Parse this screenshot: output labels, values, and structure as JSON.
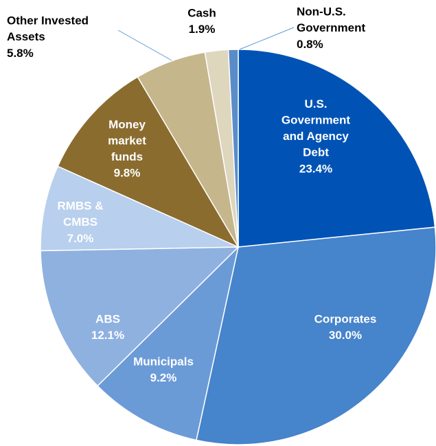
{
  "chart_data": {
    "type": "pie",
    "categories": [
      "U.S.\nGovernment\nand Agency\nDebt",
      "Corporates",
      "Municipals",
      "ABS",
      "RMBS &\nCMBS",
      "Money\nmarket\nfunds",
      "Other Invested\nAssets",
      "Cash",
      "Non-U.S.\nGovernment"
    ],
    "values": [
      23.4,
      30.0,
      9.2,
      12.1,
      7.0,
      9.8,
      5.8,
      1.9,
      0.8
    ],
    "value_labels": [
      "23.4%",
      "30.0%",
      "9.2%",
      "12.1%",
      "7.0%",
      "9.8%",
      "5.8%",
      "1.9%",
      "0.8%"
    ],
    "colors": [
      "#0053b5",
      "#4684cb",
      "#6b9bd7",
      "#8fb1e0",
      "#b8cfed",
      "#8b6c2f",
      "#c5b68c",
      "#ded6bd",
      "#5a8cc8"
    ]
  }
}
